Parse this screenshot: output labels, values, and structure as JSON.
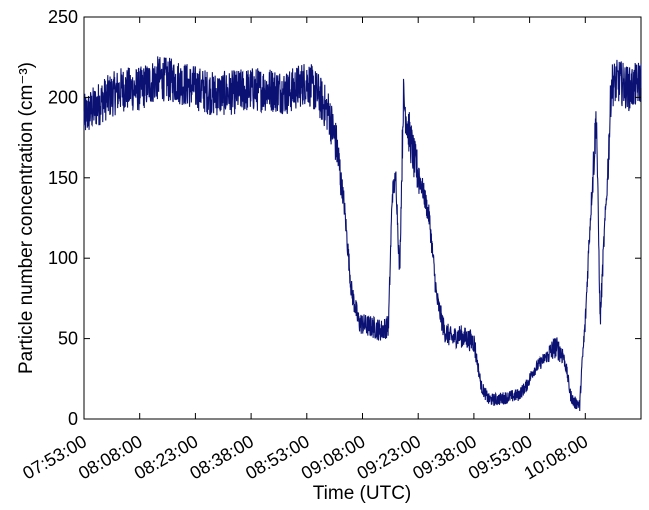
{
  "chart_data": {
    "type": "line",
    "title": "",
    "xlabel": "Time (UTC)",
    "ylabel": "Particle number concentration (cm⁻³)",
    "x_ticks": [
      "07:53:00",
      "08:08:00",
      "08:23:00",
      "08:38:00",
      "08:53:00",
      "09:08:00",
      "09:23:00",
      "09:38:00",
      "09:53:00",
      "10:08:00"
    ],
    "y_ticks": [
      0,
      50,
      100,
      150,
      200,
      250
    ],
    "xlim": [
      "07:53:00",
      "10:23:00"
    ],
    "ylim": [
      0,
      250
    ],
    "grid": false,
    "series": [
      {
        "color": "#0a1172",
        "x": [
          "07:53:00",
          "07:58:00",
          "08:03:00",
          "08:08:00",
          "08:13:00",
          "08:18:00",
          "08:23:00",
          "08:28:00",
          "08:33:00",
          "08:38:00",
          "08:43:00",
          "08:48:00",
          "08:53:00",
          "08:56:00",
          "08:59:00",
          "09:01:00",
          "09:03:00",
          "09:05:00",
          "09:07:00",
          "09:09:00",
          "09:11:00",
          "09:13:00",
          "09:15:00",
          "09:16:00",
          "09:17:00",
          "09:18:00",
          "09:19:00",
          "09:20:00",
          "09:22:00",
          "09:24:00",
          "09:26:00",
          "09:28:00",
          "09:30:00",
          "09:32:00",
          "09:34:00",
          "09:36:00",
          "09:38:00",
          "09:40:00",
          "09:42:00",
          "09:44:00",
          "09:46:00",
          "09:48:00",
          "09:50:00",
          "09:52:00",
          "09:54:00",
          "09:56:00",
          "09:58:00",
          "10:00:00",
          "10:02:00",
          "10:03:00",
          "10:04:00",
          "10:05:00",
          "10:06:00",
          "10:06:30",
          "10:07:00",
          "10:08:00",
          "10:09:00",
          "10:10:00",
          "10:11:00",
          "10:12:00",
          "10:13:00",
          "10:14:00",
          "10:15:00",
          "10:17:00",
          "10:20:00",
          "10:23:00"
        ],
        "values": [
          188,
          198,
          205,
          205,
          212,
          210,
          206,
          202,
          203,
          205,
          205,
          203,
          210,
          202,
          190,
          170,
          135,
          80,
          60,
          58,
          57,
          55,
          58,
          140,
          150,
          90,
          200,
          185,
          160,
          145,
          125,
          75,
          55,
          50,
          52,
          50,
          48,
          20,
          12,
          12,
          13,
          14,
          15,
          20,
          30,
          35,
          40,
          45,
          40,
          30,
          15,
          10,
          10,
          8,
          30,
          60,
          110,
          150,
          190,
          60,
          110,
          150,
          208,
          210,
          205,
          210
        ]
      }
    ]
  }
}
